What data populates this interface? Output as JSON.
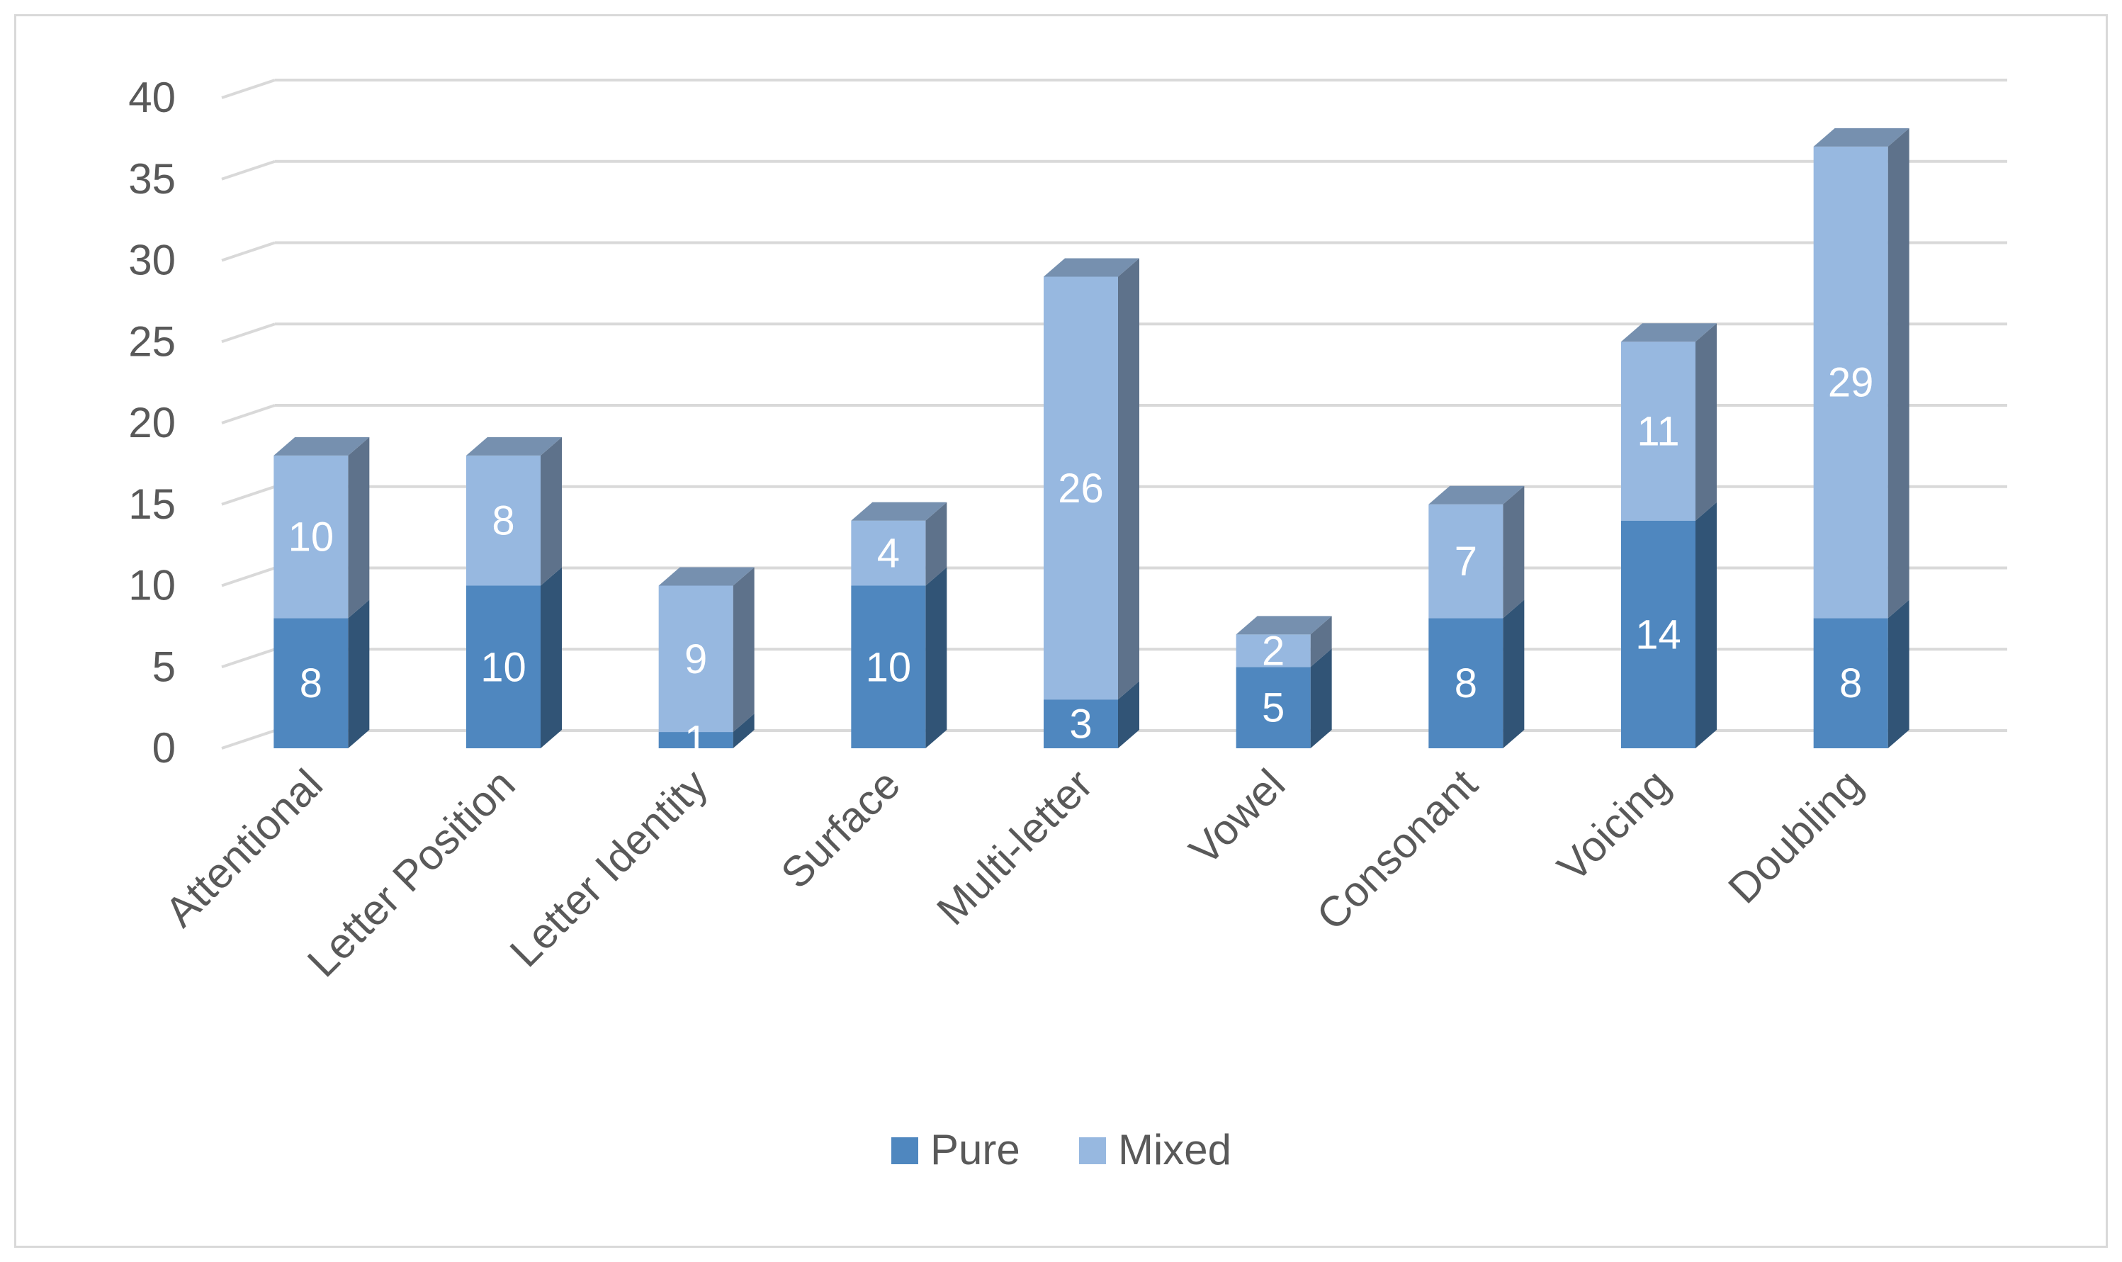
{
  "chart_data": {
    "type": "bar",
    "stacked": true,
    "three_d": true,
    "categories": [
      "Attentional",
      "Letter Position",
      "Letter Identity",
      "Surface",
      "Multi-letter",
      "Vowel",
      "Consonant",
      "Voicing",
      "Doubling"
    ],
    "series": [
      {
        "name": "Pure",
        "values": [
          8,
          10,
          1,
          10,
          3,
          5,
          8,
          14,
          8
        ],
        "color": "#4f87bf"
      },
      {
        "name": "Mixed",
        "values": [
          10,
          8,
          9,
          4,
          26,
          2,
          7,
          11,
          29
        ],
        "color": "#97b8e0"
      }
    ],
    "yticks": [
      "0",
      "5",
      "10",
      "15",
      "20",
      "25",
      "30",
      "35",
      "40"
    ],
    "ylim": [
      0,
      40
    ],
    "grid": true,
    "legend": "bottom",
    "category_label_rotation": -45
  }
}
